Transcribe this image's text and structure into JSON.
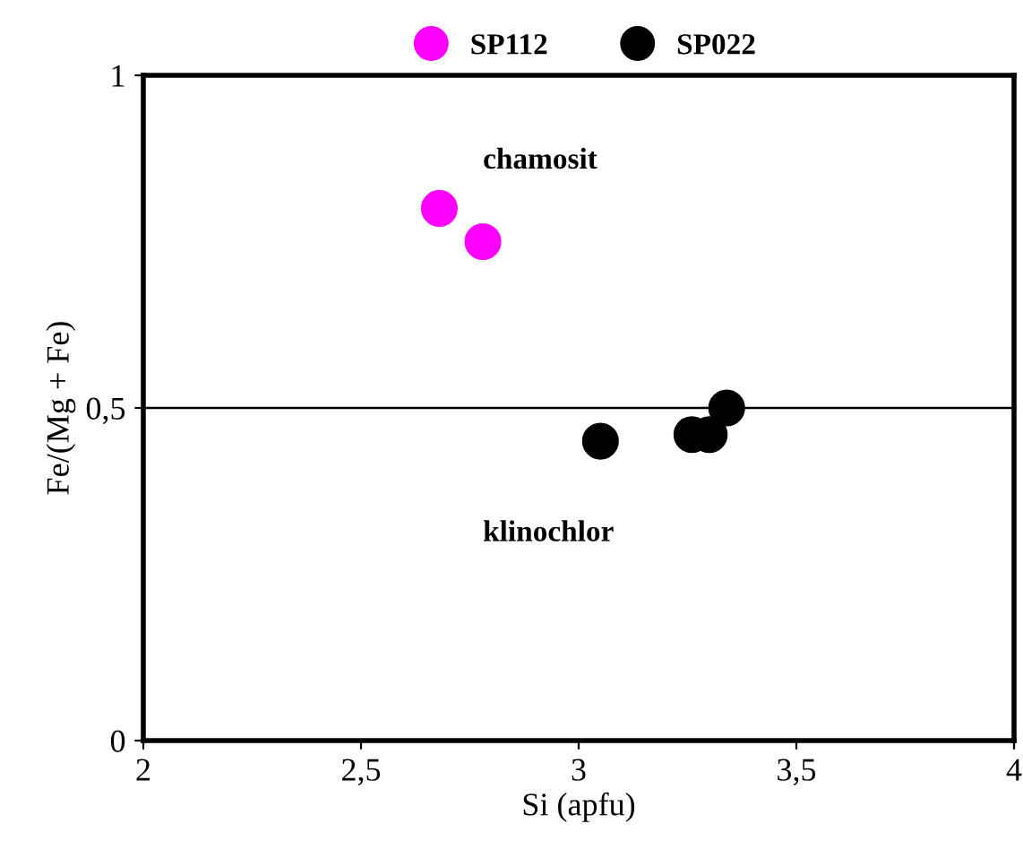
{
  "chart_data": {
    "type": "scatter",
    "xlabel": "Si (apfu)",
    "ylabel": "Fe/(Mg + Fe)",
    "xlim": [
      2,
      4
    ],
    "ylim": [
      0,
      1
    ],
    "xticks": [
      {
        "value": 2,
        "label": "2"
      },
      {
        "value": 2.5,
        "label": "2,5"
      },
      {
        "value": 3,
        "label": "3"
      },
      {
        "value": 3.5,
        "label": "3,5"
      },
      {
        "value": 4,
        "label": "4"
      }
    ],
    "yticks": [
      {
        "value": 0,
        "label": "0"
      },
      {
        "value": 0.5,
        "label": "0,5"
      },
      {
        "value": 1,
        "label": "1"
      }
    ],
    "series": [
      {
        "name": "SP112",
        "color": "#ff00ff",
        "x": [
          2.68,
          2.78
        ],
        "values": [
          0.8,
          0.75
        ]
      },
      {
        "name": "SP022",
        "color": "#000000",
        "x": [
          3.05,
          3.26,
          3.3,
          3.34
        ],
        "values": [
          0.45,
          0.46,
          0.46,
          0.5
        ]
      }
    ],
    "ref_lines": [
      {
        "axis": "y",
        "value": 0.5,
        "color": "#000000"
      }
    ],
    "annotations": [
      "chamosit",
      "klinochlor"
    ],
    "legend": "top",
    "marker": "circle",
    "grid": false
  }
}
